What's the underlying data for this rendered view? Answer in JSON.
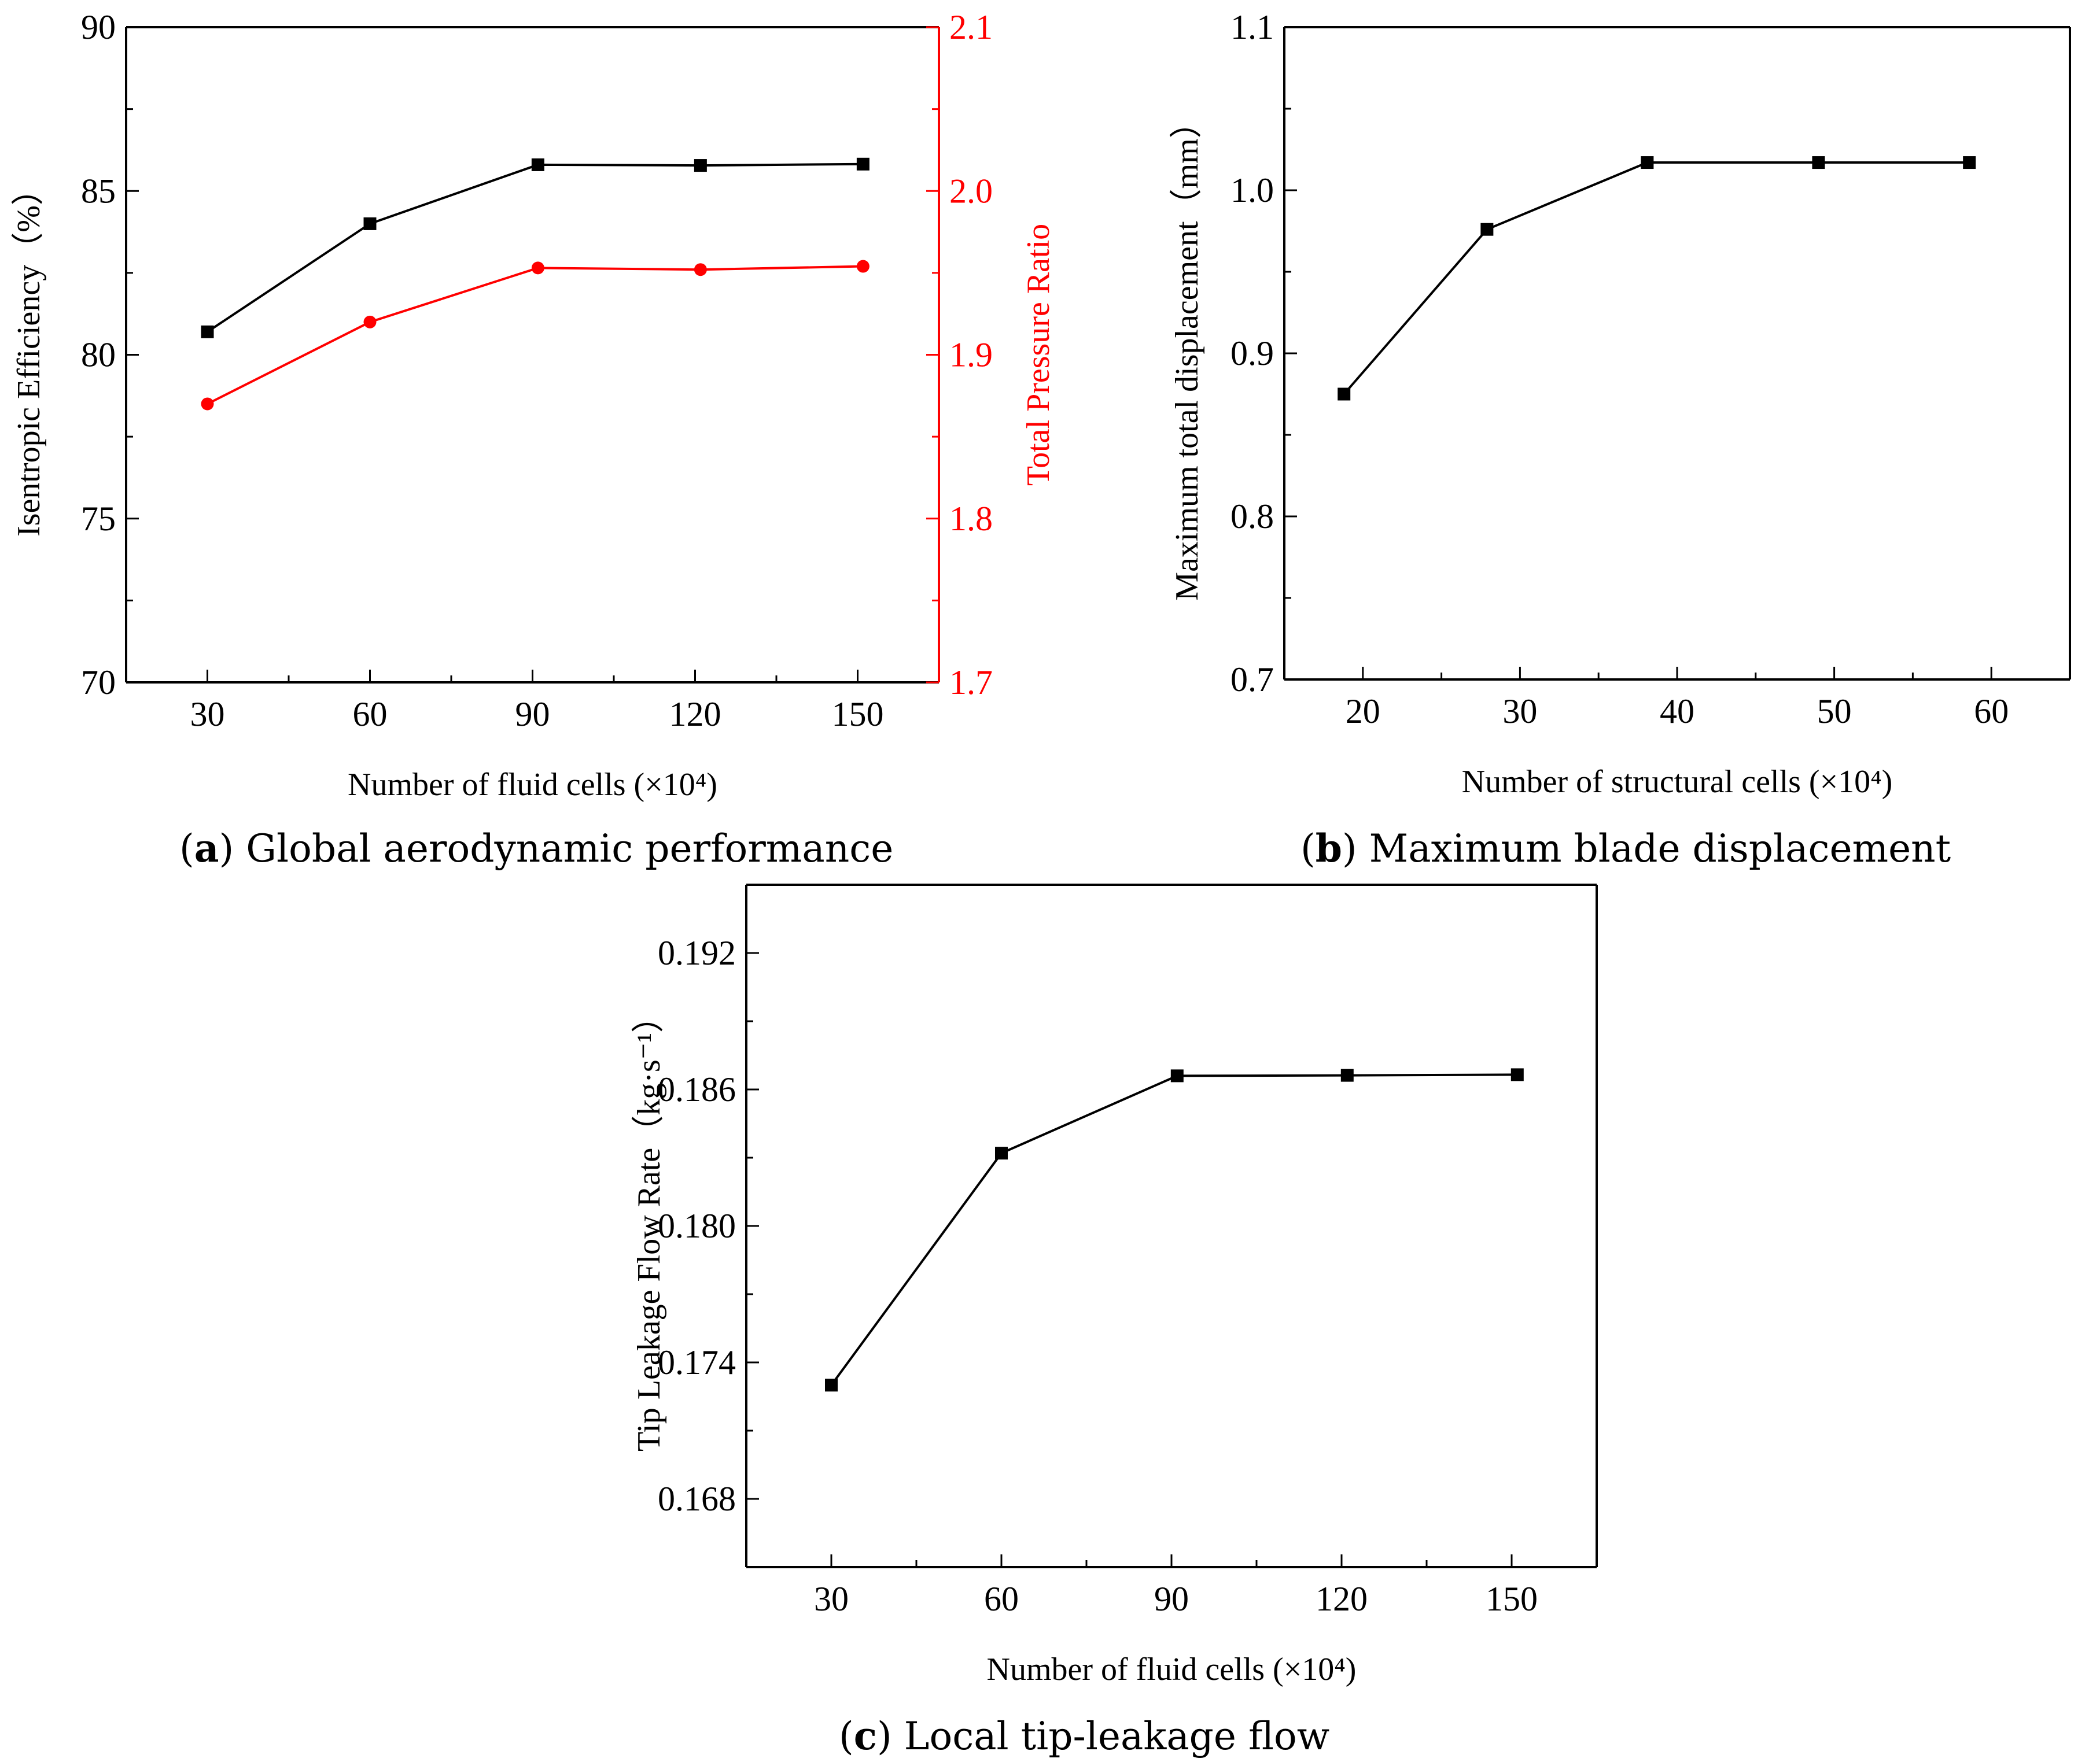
{
  "chart_data": [
    {
      "id": "a",
      "type": "line",
      "caption": {
        "letter": "a",
        "text": "Global aerodynamic performance"
      },
      "xlabel": "Number of fluid cells (×10⁴)",
      "xlim": [
        15,
        165
      ],
      "x_ticks": [
        "30",
        "60",
        "90",
        "120",
        "150"
      ],
      "ylabel_left": "Isentropic Efficiency（%）",
      "ylim_left": [
        70,
        90
      ],
      "y_ticks_left": [
        "70",
        "75",
        "80",
        "85",
        "90"
      ],
      "ylabel_right": "Total Pressure Ratio",
      "ylim_right": [
        1.7,
        2.1
      ],
      "y_ticks_right": [
        "1.7",
        "1.8",
        "1.9",
        "2.0",
        "2.1"
      ],
      "grid": false,
      "series": [
        {
          "axis": "left",
          "marker": "square",
          "color": "#000000",
          "x": [
            30,
            60,
            91,
            121,
            151
          ],
          "y": [
            80.7,
            84.0,
            85.8,
            85.78,
            85.82
          ]
        },
        {
          "axis": "right",
          "marker": "circle",
          "color": "#ff0000",
          "x": [
            30,
            60,
            91,
            121,
            151
          ],
          "y": [
            1.87,
            1.92,
            1.953,
            1.952,
            1.954
          ]
        }
      ]
    },
    {
      "id": "b",
      "type": "line",
      "caption": {
        "letter": "b",
        "text": "Maximum blade displacement"
      },
      "xlabel": "Number of structural cells (×10⁴)",
      "xlim": [
        15,
        65
      ],
      "x_ticks": [
        "20",
        "30",
        "40",
        "50",
        "60"
      ],
      "ylabel": "Maximum total displacement（mm）",
      "ylim": [
        0.7,
        1.1
      ],
      "y_ticks": [
        "0.7",
        "0.8",
        "0.9",
        "1.0",
        "1.1"
      ],
      "grid": false,
      "series": [
        {
          "marker": "square",
          "color": "#000000",
          "x": [
            18.8,
            27.9,
            38.1,
            49.0,
            58.6
          ],
          "y": [
            0.875,
            0.976,
            1.017,
            1.017,
            1.017
          ]
        }
      ]
    },
    {
      "id": "c",
      "type": "line",
      "caption": {
        "letter": "c",
        "text": "Local tip-leakage flow"
      },
      "xlabel": "Number of fluid cells (×10⁴)",
      "xlim": [
        15,
        165
      ],
      "x_ticks": [
        "30",
        "60",
        "90",
        "120",
        "150"
      ],
      "ylabel": "Tip Leakage Flow Rate（kg·s⁻¹）",
      "ylim": [
        0.165,
        0.195
      ],
      "y_ticks": [
        "0.168",
        "0.174",
        "0.180",
        "0.186",
        "0.192"
      ],
      "grid": false,
      "series": [
        {
          "marker": "square",
          "color": "#000000",
          "x": [
            30,
            60,
            91,
            121,
            151
          ],
          "y": [
            0.173,
            0.1832,
            0.1866,
            0.18662,
            0.18665
          ]
        }
      ]
    }
  ]
}
